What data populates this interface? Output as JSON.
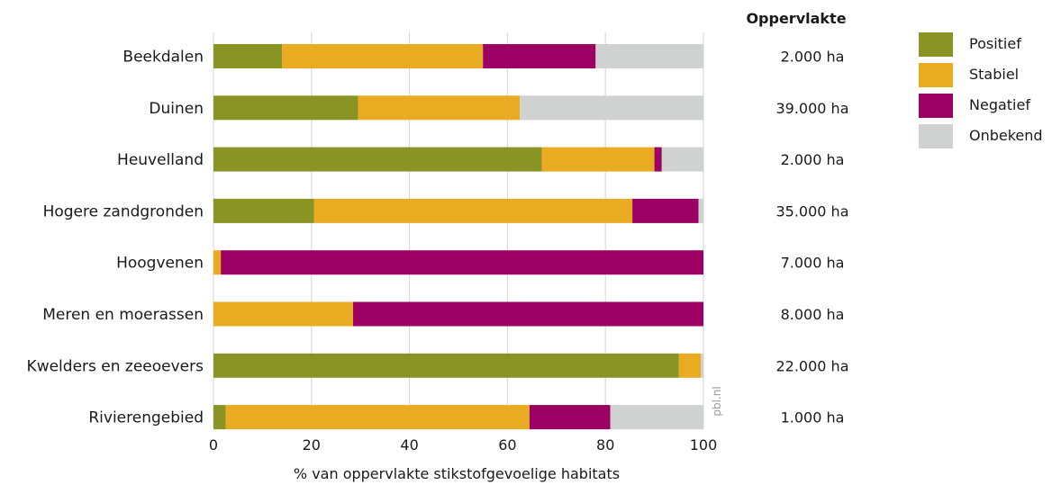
{
  "chart_data": {
    "type": "bar",
    "orientation": "horizontal",
    "stacked": true,
    "categories": [
      "Beekdalen",
      "Duinen",
      "Heuvelland",
      "Hogere zandgronden",
      "Hoogvenen",
      "Meren en moerassen",
      "Kwelders en zeeoevers",
      "Rivierengebied"
    ],
    "series": [
      {
        "name": "Positief",
        "color": "#8a9425",
        "values": [
          14,
          29.5,
          67,
          20.5,
          0,
          0,
          95,
          2.5
        ]
      },
      {
        "name": "Stabiel",
        "color": "#e8ab22",
        "values": [
          41,
          33,
          23,
          65,
          1.5,
          28.5,
          4.5,
          62
        ]
      },
      {
        "name": "Negatief",
        "color": "#9b0062",
        "values": [
          23,
          0,
          1.5,
          13.5,
          98.5,
          71.5,
          0,
          16.5
        ]
      },
      {
        "name": "Onbekend",
        "color": "#d0d2d1",
        "values": [
          22,
          37.5,
          8.5,
          1,
          0,
          0,
          0.5,
          19
        ]
      }
    ],
    "xlabel": "% van oppervlakte stikstofgevoelige habitats",
    "xlim": [
      0,
      100
    ],
    "xticks": [
      "0",
      "20",
      "40",
      "60",
      "80",
      "100"
    ],
    "grid": true,
    "legend_position": "top-right",
    "area_column_title": "Oppervlakte",
    "area_values": [
      "2.000 ha",
      "39.000 ha",
      "2.000 ha",
      "35.000 ha",
      "7.000 ha",
      "8.000 ha",
      "22.000 ha",
      "1.000 ha"
    ],
    "source": "pbl.nl"
  }
}
